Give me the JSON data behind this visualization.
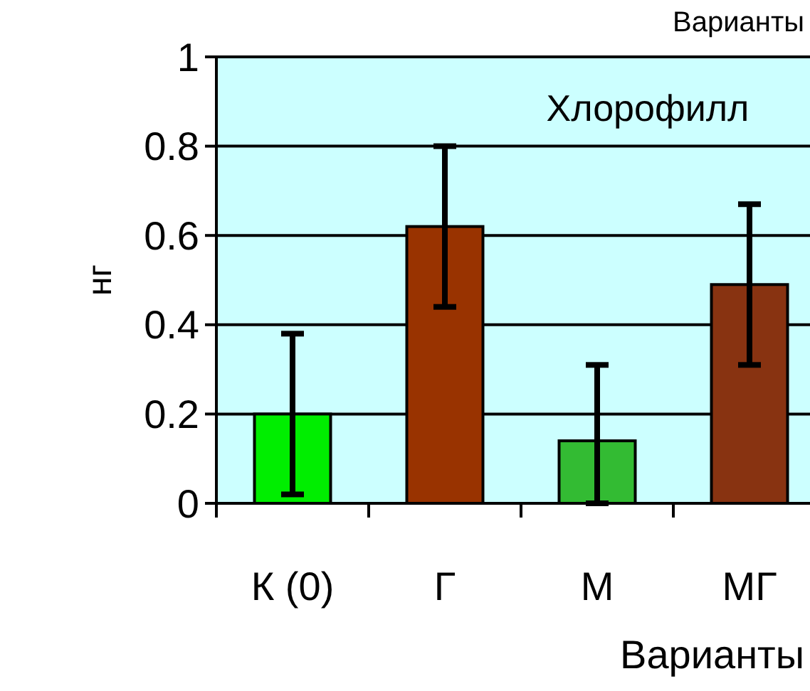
{
  "chart_data": {
    "type": "bar",
    "title": "Хлорофилл",
    "xlabel": "Варианты",
    "ylabel": "нг",
    "annotations": [
      "Варианты"
    ],
    "categories": [
      "К (0)",
      "Г",
      "М",
      "МГ"
    ],
    "values": [
      0.2,
      0.62,
      0.14,
      0.49
    ],
    "errors": [
      0.18,
      0.18,
      [
        0,
        0.31
      ],
      0.18
    ],
    "colors": [
      "#00ee00",
      "#993300",
      "#33bb33",
      "#883311"
    ],
    "ylim": [
      0,
      1
    ],
    "yticks": [
      0,
      0.2,
      0.4,
      0.6,
      0.8,
      1
    ],
    "grid": "y"
  }
}
